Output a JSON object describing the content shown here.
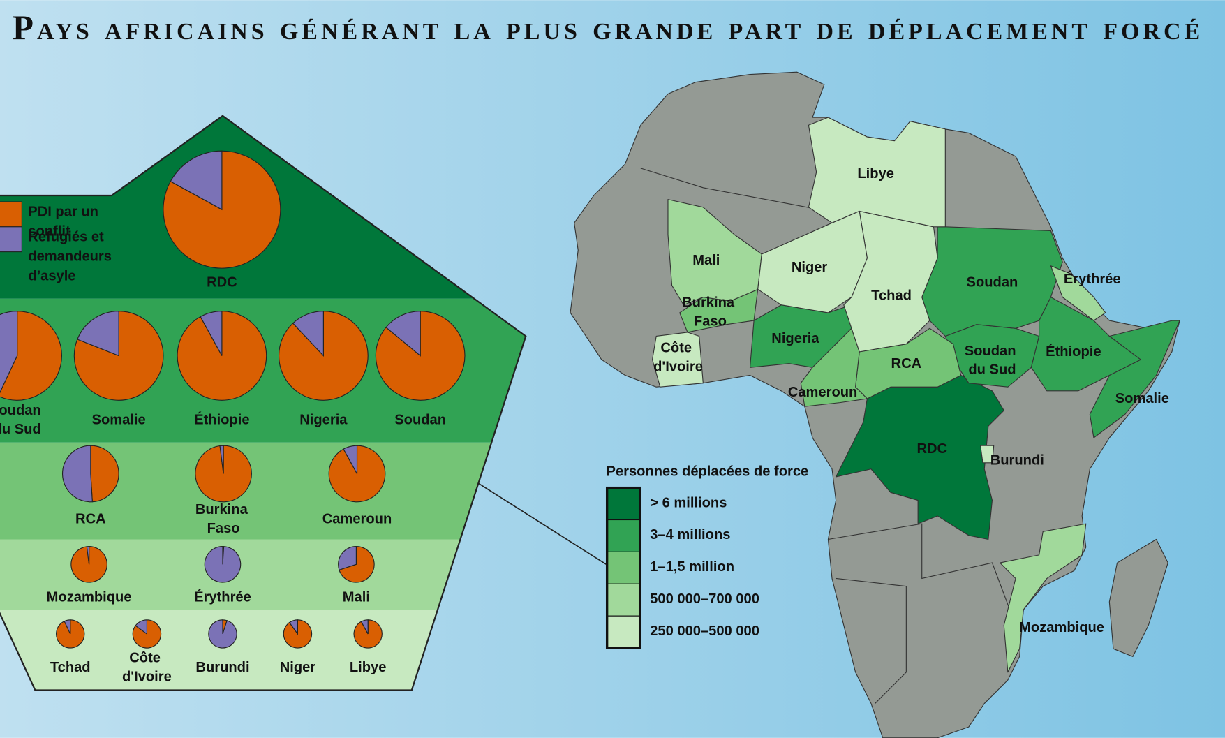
{
  "title": "Pays africains générant la plus grande part de déplacement forcé",
  "pie_legend": [
    {
      "name": "PDI par un conflit",
      "color": "#d95f02"
    },
    {
      "name": "Refugiés et demandeurs d’asyle",
      "color": "#7b72b6"
    }
  ],
  "map_legend": {
    "title": "Personnes déplacées de force",
    "classes": [
      {
        "label": "> 6 millions",
        "color": "#00773a",
        "countries": [
          {
            "name": "RDC",
            "values": [
              83,
              17
            ]
          }
        ]
      },
      {
        "label": "3–4 millions",
        "color": "#31a354",
        "countries": [
          {
            "name": "Soudan du Sud",
            "values": [
              57,
              43
            ]
          },
          {
            "name": "Somalie",
            "values": [
              81,
              19
            ]
          },
          {
            "name": "Éthiopie",
            "values": [
              92,
              8
            ]
          },
          {
            "name": "Nigeria",
            "values": [
              88,
              12
            ]
          },
          {
            "name": "Soudan",
            "values": [
              86,
              14
            ]
          }
        ]
      },
      {
        "label": "1–1,5 million",
        "color": "#74c476",
        "countries": [
          {
            "name": "RCA",
            "values": [
              49,
              51
            ]
          },
          {
            "name": "Burkina Faso",
            "values": [
              98,
              2
            ]
          },
          {
            "name": "Cameroun",
            "values": [
              92,
              8
            ]
          }
        ]
      },
      {
        "label": "500 000–700 000",
        "color": "#a1d99b",
        "countries": [
          {
            "name": "Mozambique",
            "values": [
              98,
              2
            ]
          },
          {
            "name": "Érythrée",
            "values": [
              1,
              99
            ]
          },
          {
            "name": "Mali",
            "values": [
              70,
              30
            ]
          }
        ]
      },
      {
        "label": "250 000–500 000",
        "color": "#c7e9c0",
        "countries": [
          {
            "name": "Tchad",
            "values": [
              93,
              7
            ]
          },
          {
            "name": "Côte d'Ivoire",
            "values": [
              85,
              15
            ]
          },
          {
            "name": "Burundi",
            "values": [
              5,
              95
            ]
          },
          {
            "name": "Niger",
            "values": [
              90,
              10
            ]
          },
          {
            "name": "Libye",
            "values": [
              92,
              8
            ]
          }
        ]
      }
    ]
  }
}
